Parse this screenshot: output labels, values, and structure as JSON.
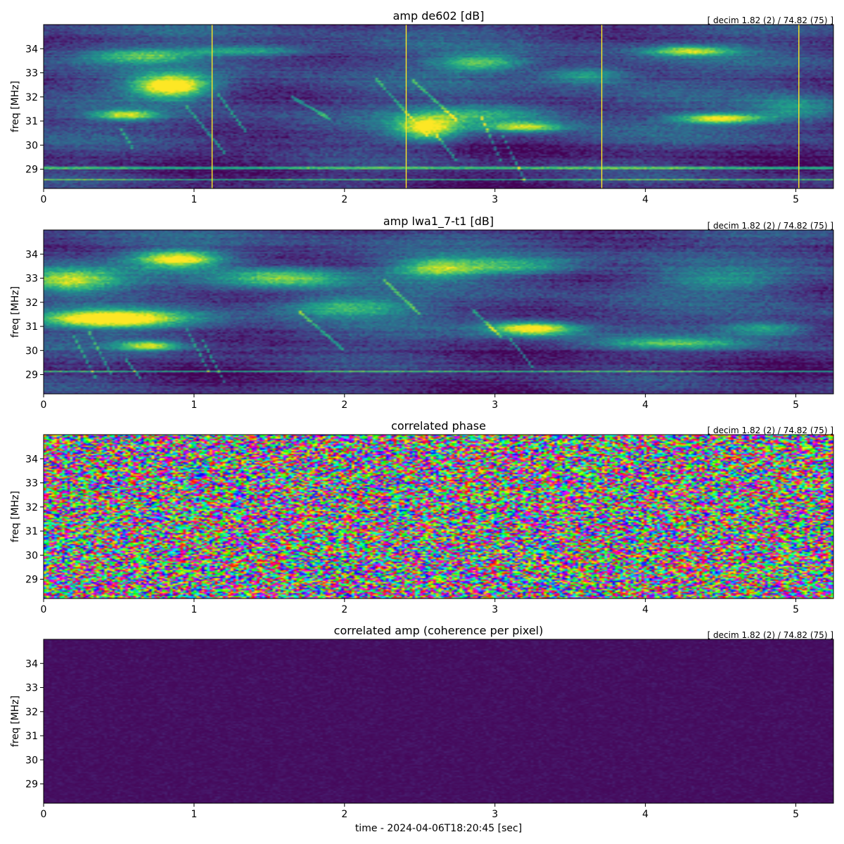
{
  "chart_data": [
    {
      "type": "heatmap",
      "title": "amp de602 [dB]",
      "annotation": "[ decim 1.82 (2) / 74.82 (75) ]",
      "xlabel": "",
      "ylabel": "freq [MHz]",
      "xlim": [
        0,
        5.25
      ],
      "ylim": [
        28.2,
        35.0
      ],
      "xticks": [
        "0",
        "1",
        "2",
        "3",
        "4",
        "5"
      ],
      "yticks": [
        "29",
        "30",
        "31",
        "32",
        "33",
        "34"
      ],
      "colormap": "viridis",
      "features": {
        "blobs": [
          {
            "t": 0.85,
            "f": 32.45,
            "st": 0.18,
            "sf": 0.35,
            "v": 1.0
          },
          {
            "t": 0.55,
            "f": 31.25,
            "st": 0.15,
            "sf": 0.15,
            "v": 0.7
          },
          {
            "t": 0.65,
            "f": 33.7,
            "st": 0.25,
            "sf": 0.2,
            "v": 0.5
          },
          {
            "t": 1.35,
            "f": 33.9,
            "st": 0.3,
            "sf": 0.15,
            "v": 0.45
          },
          {
            "t": 2.55,
            "f": 30.7,
            "st": 0.15,
            "sf": 0.35,
            "v": 0.75
          },
          {
            "t": 2.9,
            "f": 33.4,
            "st": 0.2,
            "sf": 0.25,
            "v": 0.55
          },
          {
            "t": 3.6,
            "f": 32.9,
            "st": 0.2,
            "sf": 0.25,
            "v": 0.45
          },
          {
            "t": 4.5,
            "f": 31.1,
            "st": 0.2,
            "sf": 0.15,
            "v": 0.85
          },
          {
            "t": 4.3,
            "f": 33.9,
            "st": 0.2,
            "sf": 0.15,
            "v": 0.65
          },
          {
            "t": 3.2,
            "f": 30.75,
            "st": 0.18,
            "sf": 0.15,
            "v": 0.65
          },
          {
            "t": 2.95,
            "f": 31.3,
            "st": 0.35,
            "sf": 0.3,
            "v": 0.45
          },
          {
            "t": 5.0,
            "f": 31.5,
            "st": 0.2,
            "sf": 0.4,
            "v": 0.35
          }
        ],
        "vlines": [
          1.12,
          2.41,
          3.71,
          5.02
        ],
        "hlines": [
          28.55,
          29.05
        ],
        "sweeps": [
          {
            "t0": 1.15,
            "f0": 32.2,
            "t1": 1.35,
            "f1": 30.5
          },
          {
            "t0": 0.95,
            "f0": 31.6,
            "t1": 1.2,
            "f1": 29.7
          },
          {
            "t0": 1.65,
            "f0": 32.0,
            "t1": 1.9,
            "f1": 31.1
          },
          {
            "t0": 2.2,
            "f0": 32.8,
            "t1": 2.55,
            "f1": 30.4
          },
          {
            "t0": 2.45,
            "f0": 32.7,
            "t1": 2.75,
            "f1": 31.0
          },
          {
            "t0": 2.6,
            "f0": 30.5,
            "t1": 2.75,
            "f1": 29.3
          },
          {
            "t0": 2.9,
            "f0": 31.3,
            "t1": 3.05,
            "f1": 29.2
          },
          {
            "t0": 3.05,
            "f0": 30.4,
            "t1": 3.2,
            "f1": 28.5
          },
          {
            "t0": 0.5,
            "f0": 30.8,
            "t1": 0.6,
            "f1": 29.8
          }
        ]
      }
    },
    {
      "type": "heatmap",
      "title": "amp lwa1_7-t1 [dB]",
      "annotation": "[ decim 1.82 (2) / 74.82 (75) ]",
      "xlabel": "",
      "ylabel": "freq [MHz]",
      "xlim": [
        0,
        5.25
      ],
      "ylim": [
        28.2,
        35.0
      ],
      "xticks": [
        "0",
        "1",
        "2",
        "3",
        "4",
        "5"
      ],
      "yticks": [
        "29",
        "30",
        "31",
        "32",
        "33",
        "34"
      ],
      "colormap": "viridis",
      "features": {
        "blobs": [
          {
            "t": 0.45,
            "f": 31.3,
            "st": 0.35,
            "sf": 0.25,
            "v": 1.0
          },
          {
            "t": 0.9,
            "f": 33.8,
            "st": 0.2,
            "sf": 0.25,
            "v": 0.85
          },
          {
            "t": 0.15,
            "f": 32.9,
            "st": 0.25,
            "sf": 0.35,
            "v": 0.75
          },
          {
            "t": 0.7,
            "f": 30.2,
            "st": 0.15,
            "sf": 0.15,
            "v": 0.7
          },
          {
            "t": 1.6,
            "f": 33.0,
            "st": 0.3,
            "sf": 0.3,
            "v": 0.6
          },
          {
            "t": 2.0,
            "f": 31.8,
            "st": 0.3,
            "sf": 0.3,
            "v": 0.5
          },
          {
            "t": 2.6,
            "f": 33.4,
            "st": 0.2,
            "sf": 0.3,
            "v": 0.55
          },
          {
            "t": 3.25,
            "f": 30.9,
            "st": 0.2,
            "sf": 0.2,
            "v": 0.9
          },
          {
            "t": 3.1,
            "f": 33.5,
            "st": 0.3,
            "sf": 0.25,
            "v": 0.5
          },
          {
            "t": 4.2,
            "f": 30.3,
            "st": 0.35,
            "sf": 0.15,
            "v": 0.45
          },
          {
            "t": 4.8,
            "f": 30.9,
            "st": 0.2,
            "sf": 0.2,
            "v": 0.45
          },
          {
            "t": 4.5,
            "f": 32.9,
            "st": 0.3,
            "sf": 0.3,
            "v": 0.3
          }
        ],
        "vlines": [],
        "hlines": [
          29.15
        ],
        "sweeps": [
          {
            "t0": 0.2,
            "f0": 30.6,
            "t1": 0.35,
            "f1": 28.8
          },
          {
            "t0": 0.3,
            "f0": 30.8,
            "t1": 0.45,
            "f1": 29.0
          },
          {
            "t0": 0.55,
            "f0": 29.6,
            "t1": 0.65,
            "f1": 28.8
          },
          {
            "t0": 0.95,
            "f0": 30.9,
            "t1": 1.1,
            "f1": 29.1
          },
          {
            "t0": 1.05,
            "f0": 30.5,
            "t1": 1.2,
            "f1": 28.7
          },
          {
            "t0": 1.7,
            "f0": 31.6,
            "t1": 2.0,
            "f1": 30.0
          },
          {
            "t0": 2.25,
            "f0": 33.0,
            "t1": 2.5,
            "f1": 31.5
          },
          {
            "t0": 2.85,
            "f0": 31.7,
            "t1": 3.05,
            "f1": 30.5
          },
          {
            "t0": 3.1,
            "f0": 30.5,
            "t1": 3.25,
            "f1": 29.3
          }
        ]
      }
    },
    {
      "type": "heatmap",
      "title": "correlated phase",
      "annotation": "[ decim 1.82 (2) / 74.82 (75) ]",
      "xlabel": "",
      "ylabel": "freq [MHz]",
      "xlim": [
        0,
        5.25
      ],
      "ylim": [
        28.2,
        35.0
      ],
      "xticks": [
        "0",
        "1",
        "2",
        "3",
        "4",
        "5"
      ],
      "yticks": [
        "29",
        "30",
        "31",
        "32",
        "33",
        "34"
      ],
      "colormap": "hsv",
      "features": {
        "noise": "uniform-phase"
      }
    },
    {
      "type": "heatmap",
      "title": "correlated amp (coherence per pixel)",
      "annotation": "[ decim 1.82 (2) / 74.82 (75) ]",
      "xlabel": "time - 2024-04-06T18:20:45 [sec]",
      "ylabel": "freq [MHz]",
      "xlim": [
        0,
        5.25
      ],
      "ylim": [
        28.2,
        35.0
      ],
      "xticks": [
        "0",
        "1",
        "2",
        "3",
        "4",
        "5"
      ],
      "yticks": [
        "29",
        "30",
        "31",
        "32",
        "33",
        "34"
      ],
      "colormap": "viridis",
      "features": {
        "noise": "low-coherence"
      }
    }
  ]
}
